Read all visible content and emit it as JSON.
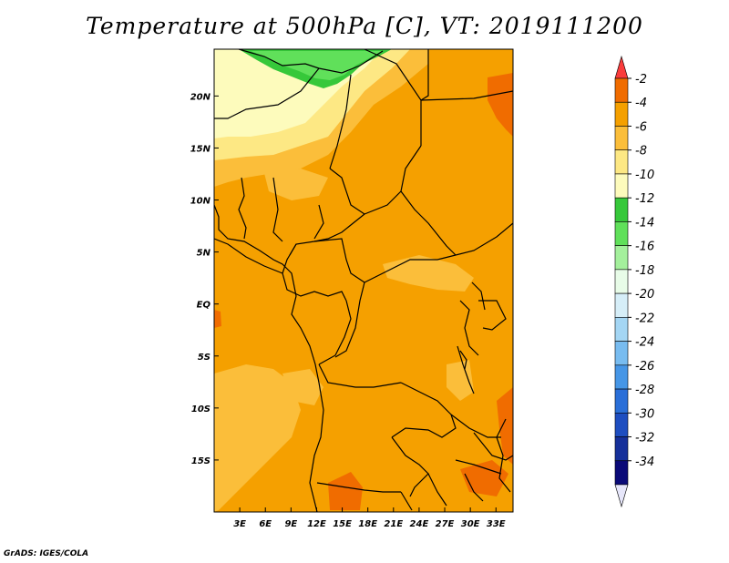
{
  "title": "Temperature at 500hPa [C], VT: 2019111200",
  "footer": "GrADS: IGES/COLA",
  "map": {
    "lon_range": [
      0,
      35
    ],
    "lat_range": [
      -20,
      24.5
    ],
    "lon_ticks": [
      "3E",
      "6E",
      "9E",
      "12E",
      "15E",
      "18E",
      "21E",
      "24E",
      "27E",
      "30E",
      "33E"
    ],
    "lat_ticks": [
      "20N",
      "15N",
      "10N",
      "5N",
      "EQ",
      "5S",
      "10S",
      "15S"
    ],
    "background_color": "#f5a000"
  },
  "legend": {
    "labels": [
      "-2",
      "-4",
      "-6",
      "-8",
      "-10",
      "-12",
      "-14",
      "-16",
      "-18",
      "-20",
      "-22",
      "-24",
      "-26",
      "-28",
      "-30",
      "-32",
      "-34"
    ],
    "colors": [
      "#fa3c3c",
      "#f06c00",
      "#f5a000",
      "#fbbe3a",
      "#fde884",
      "#fdfbbc",
      "#36c83a",
      "#60e05a",
      "#a4f09c",
      "#e8fce8",
      "#d6eef8",
      "#a4d6f4",
      "#78bcf0",
      "#4696e6",
      "#2a6fd8",
      "#1e4ec0",
      "#16309a",
      "#0a0a78",
      "#e6e6fa"
    ]
  }
}
